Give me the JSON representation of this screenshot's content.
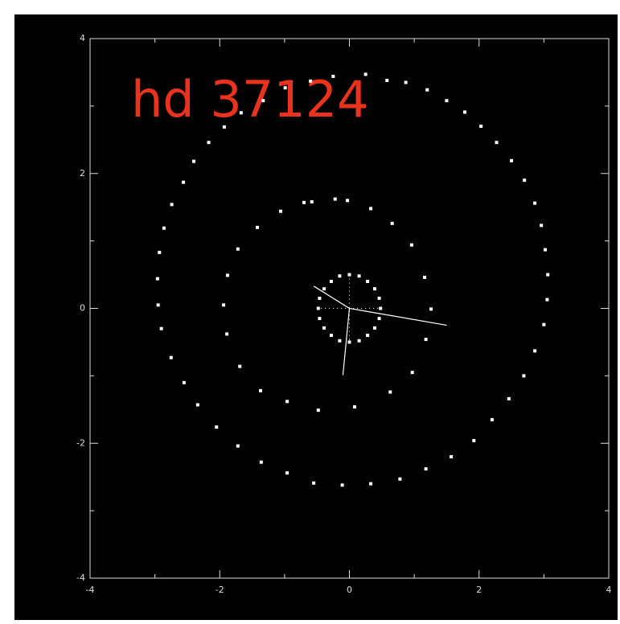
{
  "chart_data": {
    "type": "scatter",
    "title": "hd 37124",
    "xlim": [
      -4,
      4
    ],
    "ylim": [
      -4,
      4
    ],
    "xticks": [
      -4,
      -2,
      0,
      2,
      4
    ],
    "yticks": [
      -4,
      -2,
      0,
      2,
      4
    ],
    "xminorticks": [
      -3,
      -1,
      1,
      3
    ],
    "yminorticks": [
      -3,
      -1,
      1,
      3
    ],
    "series": [
      {
        "color": "#ffffff",
        "x": [
          0.48,
          0.46,
          0.39,
          0.28,
          0.15,
          0,
          -0.15,
          -0.28,
          -0.39,
          -0.46,
          -0.48,
          -0.46,
          -0.39,
          -0.28,
          -0.15,
          0,
          0.15,
          0.28,
          0.39,
          0.46
        ],
        "y": [
          0,
          0.15,
          0.29,
          0.4,
          0.48,
          0.5,
          0.48,
          0.4,
          0.29,
          0.15,
          0,
          -0.15,
          -0.29,
          -0.4,
          -0.48,
          -0.5,
          -0.48,
          -0.4,
          -0.29,
          -0.15
        ]
      },
      {
        "color": "#ffffff",
        "x": [
          -0.22,
          -0.58,
          -0.7,
          -1.06,
          -1.42,
          -1.72,
          -1.88,
          -1.94,
          -1.89,
          -1.69,
          -1.37,
          -0.96,
          -0.48,
          0.08,
          0.63,
          0.97,
          1.18,
          1.26,
          1.16,
          0.96,
          0.66,
          0.33,
          -0.03
        ],
        "y": [
          1.62,
          1.58,
          1.57,
          1.44,
          1.2,
          0.88,
          0.49,
          0.05,
          -0.38,
          -0.86,
          -1.22,
          -1.38,
          -1.51,
          -1.46,
          -1.24,
          -0.95,
          -0.46,
          -0.01,
          0.46,
          0.94,
          1.26,
          1.48,
          1.6
        ]
      },
      {
        "color": "#ffffff",
        "x": [
          0.25,
          0.58,
          0.87,
          1.2,
          1.5,
          1.78,
          2.03,
          2.27,
          2.5,
          2.7,
          2.86,
          2.96,
          3.02,
          3.06,
          3.05,
          3.0,
          2.86,
          2.69,
          2.46,
          2.2,
          1.92,
          1.57,
          1.18,
          0.78,
          0.33,
          -0.11,
          -0.55,
          -0.96,
          -1.36,
          -1.72,
          -2.05,
          -2.34,
          -2.55,
          -2.75,
          -2.9,
          -2.95,
          -2.96,
          -2.93,
          -2.86,
          -2.74,
          -2.56,
          -2.4,
          -2.17,
          -1.93,
          -1.67,
          -1.33,
          -0.99,
          -0.6,
          -0.25
        ],
        "y": [
          3.47,
          3.38,
          3.35,
          3.24,
          3.08,
          2.91,
          2.7,
          2.46,
          2.19,
          1.9,
          1.56,
          1.23,
          0.87,
          0.5,
          0.13,
          -0.24,
          -0.63,
          -1.0,
          -1.34,
          -1.65,
          -1.96,
          -2.2,
          -2.38,
          -2.53,
          -2.6,
          -2.62,
          -2.59,
          -2.44,
          -2.28,
          -2.04,
          -1.76,
          -1.43,
          -1.1,
          -0.73,
          -0.3,
          0.05,
          0.44,
          0.83,
          1.19,
          1.54,
          1.87,
          2.18,
          2.46,
          2.69,
          2.9,
          3.08,
          3.27,
          3.37,
          3.44
        ]
      }
    ],
    "segments": [
      [
        0,
        0,
        -0.55,
        0.33
      ],
      [
        0,
        0,
        1.5,
        -0.25
      ],
      [
        0,
        0,
        -0.1,
        -0.99
      ]
    ],
    "dotted_segments": [
      [
        0,
        0.5,
        0,
        -0.5
      ],
      [
        -0.5,
        0,
        0.5,
        0
      ]
    ]
  }
}
